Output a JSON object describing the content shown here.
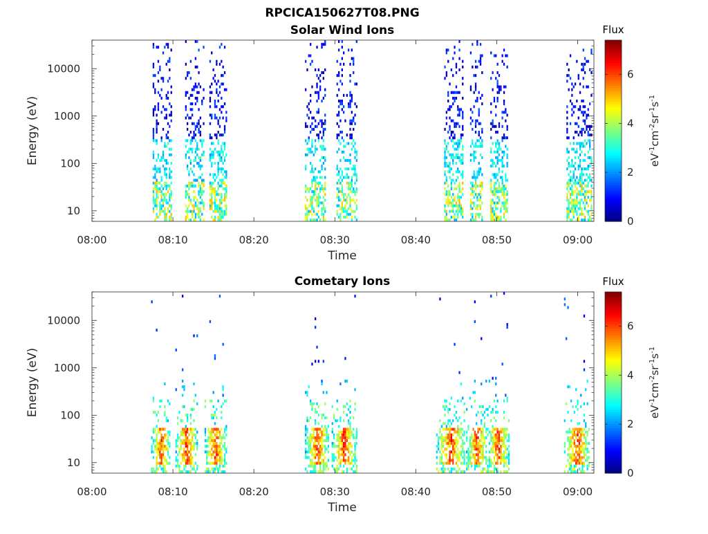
{
  "figure_title": "RPCICA150627T08.PNG",
  "colorbar": {
    "title": "Flux",
    "label": "eV-1cm-2sr-1s-1",
    "label_parts": [
      [
        "eV",
        ""
      ],
      [
        "-1",
        "sup"
      ],
      [
        "cm",
        ""
      ],
      [
        "-2",
        "sup"
      ],
      [
        "sr",
        ""
      ],
      [
        "-1",
        "sup"
      ],
      [
        "s",
        ""
      ],
      [
        "-1",
        "sup"
      ]
    ],
    "range": [
      0,
      7.4
    ],
    "ticks": [
      "0",
      "2",
      "4",
      "6"
    ],
    "colormap": "jet"
  },
  "chart_data": [
    {
      "type": "heatmap",
      "title": "Solar Wind Ions",
      "xlabel": "Time",
      "ylabel": "Energy (eV)",
      "x_ticks": [
        "08:00",
        "08:10",
        "08:20",
        "08:30",
        "08:40",
        "08:50",
        "09:00"
      ],
      "y_ticks": [
        "10",
        "100",
        "1000",
        "10000"
      ],
      "y_scale": "log",
      "x_range": [
        "08:00",
        "09:02"
      ],
      "y_range": [
        6,
        40000
      ],
      "bursts": [
        {
          "start": "08:07.5",
          "end": "08:09.7",
          "lowband": "08:09.0"
        },
        {
          "start": "08:11.5",
          "end": "08:13.7",
          "lowband": "08:12.2"
        },
        {
          "start": "08:14.5",
          "end": "08:16.5",
          "lowband": "08:15.2"
        },
        {
          "start": "08:26.3",
          "end": "08:28.8",
          "lowband": "08:27.7"
        },
        {
          "start": "08:30.2",
          "end": "08:32.6",
          "lowband": "08:31.0"
        },
        {
          "start": "08:43.5",
          "end": "08:45.8",
          "lowband": "08:44.5"
        },
        {
          "start": "08:46.7",
          "end": "08:48.2",
          "lowband": "08:47.3"
        },
        {
          "start": "08:49.2",
          "end": "08:51.3",
          "lowband": "08:50.2"
        },
        {
          "start": "08:58.6",
          "end": "09:01.7",
          "lowband": "08:59.6"
        }
      ]
    },
    {
      "type": "heatmap",
      "title": "Cometary Ions",
      "xlabel": "Time",
      "ylabel": "Energy (eV)",
      "x_ticks": [
        "08:00",
        "08:10",
        "08:20",
        "08:30",
        "08:40",
        "08:50",
        "09:00"
      ],
      "y_ticks": [
        "10",
        "100",
        "1000",
        "10000"
      ],
      "y_scale": "log",
      "x_range": [
        "08:00",
        "09:02"
      ],
      "y_range": [
        6,
        40000
      ],
      "bursts": [
        {
          "start": "08:07.3",
          "end": "08:09.6",
          "peak": "08:08.5"
        },
        {
          "start": "08:10.3",
          "end": "08:12.9",
          "peak": "08:11.6"
        },
        {
          "start": "08:13.9",
          "end": "08:16.5",
          "peak": "08:15.2"
        },
        {
          "start": "08:26.3",
          "end": "08:29.2",
          "peak": "08:27.8"
        },
        {
          "start": "08:29.6",
          "end": "08:32.6",
          "peak": "08:31.1"
        },
        {
          "start": "08:42.5",
          "end": "08:46.0",
          "peak": "08:44.3"
        },
        {
          "start": "08:46.2",
          "end": "08:48.8",
          "peak": "08:47.5"
        },
        {
          "start": "08:48.8",
          "end": "08:51.5",
          "peak": "08:50.1"
        },
        {
          "start": "08:58.3",
          "end": "09:01.5",
          "peak": "08:59.9"
        }
      ]
    }
  ]
}
